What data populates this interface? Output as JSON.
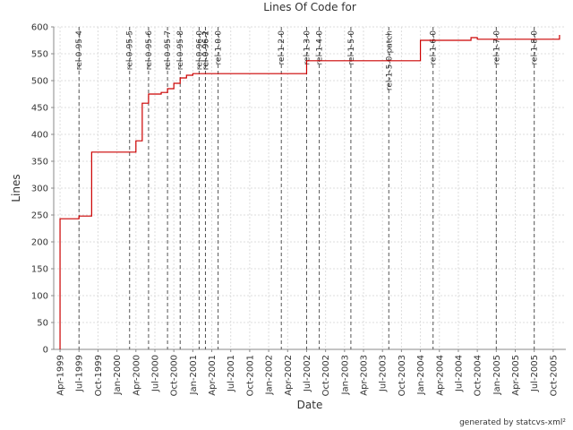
{
  "chart_data": {
    "type": "line",
    "title": "Lines Of Code for",
    "x_label": "Date",
    "y_label": "Lines",
    "footer": "generated by statcvs-xml²",
    "color": "#cc0000",
    "grid": true,
    "step": true,
    "x": [
      "1999-04",
      "1999-04",
      "1999-07",
      "1999-09",
      "2000-04",
      "2000-05",
      "2000-05",
      "2000-06",
      "2000-08",
      "2000-09",
      "2000-10",
      "2000-11",
      "2000-12",
      "2001-01",
      "2002-07",
      "2002-07",
      "2004-01",
      "2004-09",
      "2004-10",
      "2005-11"
    ],
    "values": [
      0,
      243,
      248,
      367,
      388,
      412,
      458,
      475,
      478,
      485,
      495,
      505,
      510,
      513,
      530,
      537,
      575,
      580,
      577,
      585
    ],
    "xlim": [
      "1999-03",
      "2005-12"
    ],
    "xticks": [
      {
        "value": "1999-04",
        "label": "Apr-1999"
      },
      {
        "value": "1999-07",
        "label": "Jul-1999"
      },
      {
        "value": "1999-10",
        "label": "Oct-1999"
      },
      {
        "value": "2000-01",
        "label": "Jan-2000"
      },
      {
        "value": "2000-04",
        "label": "Apr-2000"
      },
      {
        "value": "2000-07",
        "label": "Jul-2000"
      },
      {
        "value": "2000-10",
        "label": "Oct-2000"
      },
      {
        "value": "2001-01",
        "label": "Jan-2001"
      },
      {
        "value": "2001-04",
        "label": "Apr-2001"
      },
      {
        "value": "2001-07",
        "label": "Jul-2001"
      },
      {
        "value": "2001-10",
        "label": "Oct-2001"
      },
      {
        "value": "2002-01",
        "label": "Jan-2002"
      },
      {
        "value": "2002-04",
        "label": "Apr-2002"
      },
      {
        "value": "2002-07",
        "label": "Jul-2002"
      },
      {
        "value": "2002-10",
        "label": "Oct-2002"
      },
      {
        "value": "2003-01",
        "label": "Jan-2003"
      },
      {
        "value": "2003-04",
        "label": "Apr-2003"
      },
      {
        "value": "2003-07",
        "label": "Jul-2003"
      },
      {
        "value": "2003-10",
        "label": "Oct-2003"
      },
      {
        "value": "2004-01",
        "label": "Jan-2004"
      },
      {
        "value": "2004-04",
        "label": "Apr-2004"
      },
      {
        "value": "2004-07",
        "label": "Jul-2004"
      },
      {
        "value": "2004-10",
        "label": "Oct-2004"
      },
      {
        "value": "2005-01",
        "label": "Jan-2005"
      },
      {
        "value": "2005-04",
        "label": "Apr-2005"
      },
      {
        "value": "2005-07",
        "label": "Jul-2005"
      },
      {
        "value": "2005-10",
        "label": "Oct-2005"
      }
    ],
    "ylim": [
      0,
      600
    ],
    "yticks": [
      0,
      50,
      100,
      150,
      200,
      250,
      300,
      350,
      400,
      450,
      500,
      550,
      600
    ],
    "markers": [
      {
        "x": "1999-07",
        "label": "rel-0-95-4"
      },
      {
        "x": "2000-03",
        "label": "rel-0-95-5"
      },
      {
        "x": "2000-06",
        "label": "rel-0-95-6"
      },
      {
        "x": "2000-09",
        "label": "rel-0-95-7"
      },
      {
        "x": "2000-11",
        "label": "rel-0-95-8"
      },
      {
        "x": "2001-02",
        "label": "rel-0-96-0"
      },
      {
        "x": "2001-03",
        "label": "rel-0-96-1"
      },
      {
        "x": "2001-03",
        "label": "rel-0-96-2"
      },
      {
        "x": "2001-05",
        "label": "rel-1-0-0"
      },
      {
        "x": "2002-03",
        "label": "rel-1-2-0"
      },
      {
        "x": "2002-07",
        "label": "rel-1-3-0"
      },
      {
        "x": "2002-09",
        "label": "rel-1-4-0"
      },
      {
        "x": "2003-02",
        "label": "rel-1-5-0"
      },
      {
        "x": "2003-08",
        "label": "rel-1-5-0-patch"
      },
      {
        "x": "2004-03",
        "label": "rel-1-6-0"
      },
      {
        "x": "2005-01",
        "label": "rel-1-7-0"
      },
      {
        "x": "2005-07",
        "label": "rel-1-8-0"
      }
    ]
  }
}
